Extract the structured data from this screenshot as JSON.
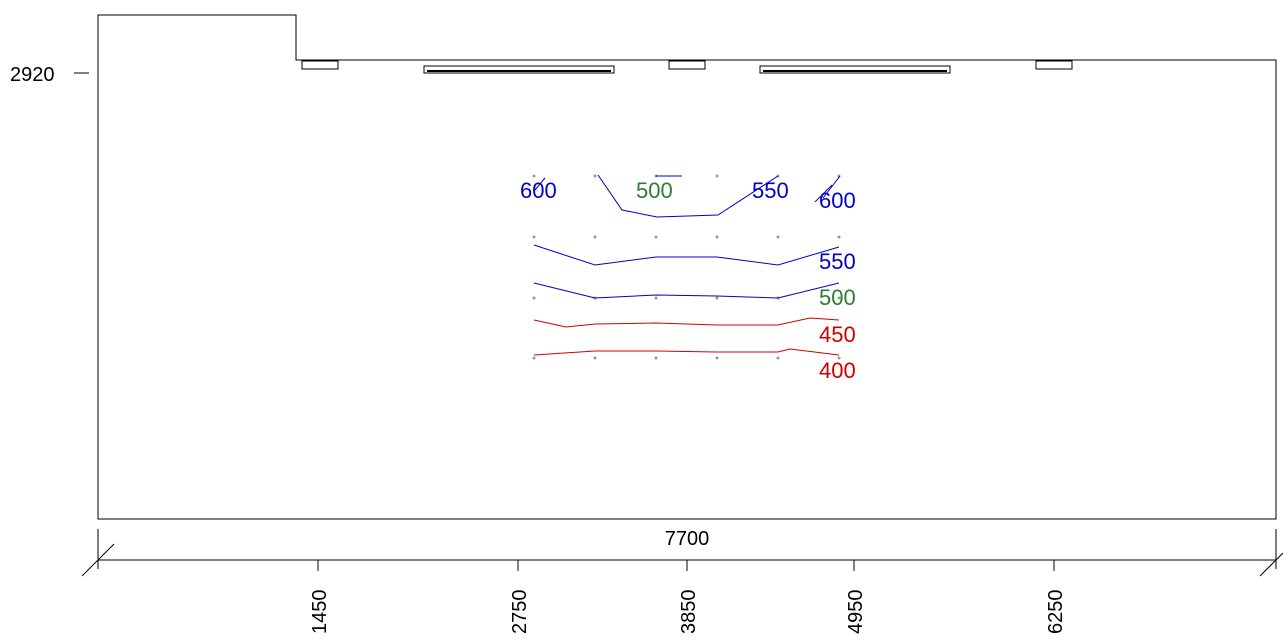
{
  "drawing": {
    "height_label": "2920",
    "total_width_label": "7700",
    "ruler_labels": [
      "1450",
      "2750",
      "3850",
      "4950",
      "6250"
    ]
  },
  "contours": {
    "top_row": [
      {
        "value": "600",
        "color": "#0000c8"
      },
      {
        "value": "500",
        "color": "#2e7d32"
      },
      {
        "value": "550",
        "color": "#0000c8"
      },
      {
        "value": "600",
        "color": "#0000c8"
      }
    ],
    "right_labels": [
      {
        "value": "550",
        "color": "#0000c8"
      },
      {
        "value": "500",
        "color": "#2e7d32"
      },
      {
        "value": "450",
        "color": "#d00000"
      },
      {
        "value": "400",
        "color": "#d00000"
      }
    ]
  }
}
